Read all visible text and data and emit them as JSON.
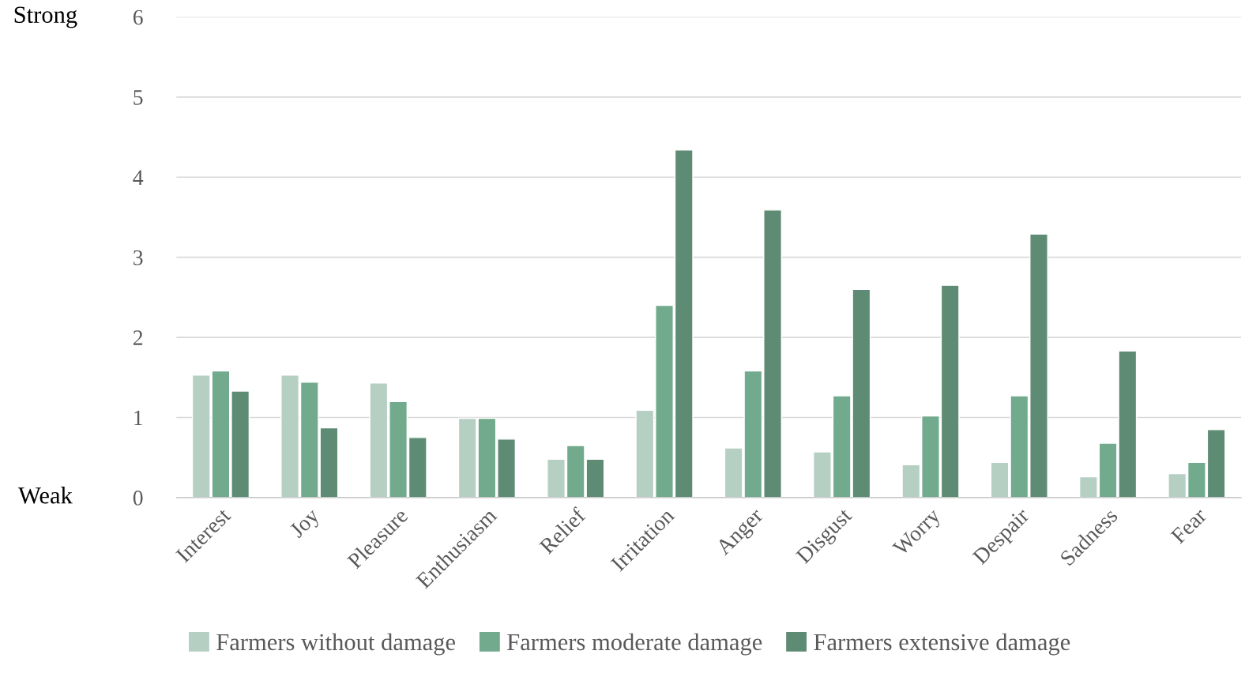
{
  "chart_data": {
    "type": "bar",
    "categories": [
      "Interest",
      "Joy",
      "Pleasure",
      "Enthusiasm",
      "Relief",
      "Irritation",
      "Anger",
      "Disgust",
      "Worry",
      "Despair",
      "Sadness",
      "Fear"
    ],
    "series": [
      {
        "name": "Farmers without damage",
        "color": "#b5cfc3",
        "values": [
          1.53,
          1.53,
          1.43,
          0.99,
          0.48,
          1.09,
          0.62,
          0.57,
          0.41,
          0.44,
          0.26,
          0.3
        ]
      },
      {
        "name": "Farmers moderate damage",
        "color": "#72aa8e",
        "values": [
          1.58,
          1.44,
          1.2,
          0.99,
          0.65,
          2.4,
          1.58,
          1.27,
          1.02,
          1.27,
          0.68,
          0.44
        ]
      },
      {
        "name": "Farmers extensive damage",
        "color": "#5e8b74",
        "values": [
          1.33,
          0.87,
          0.75,
          0.73,
          0.48,
          4.34,
          3.59,
          2.6,
          2.65,
          3.29,
          1.83,
          0.85
        ]
      }
    ],
    "ylim": [
      0,
      6
    ],
    "yticks": [
      0,
      1,
      2,
      3,
      4,
      5,
      6
    ],
    "grid": "y",
    "legend": "bottom",
    "annotations": [
      "Strong",
      "Weak"
    ]
  }
}
